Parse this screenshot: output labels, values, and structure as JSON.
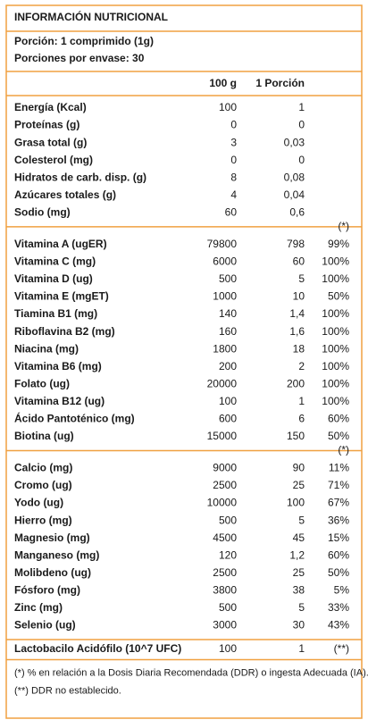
{
  "header": {
    "title": "INFORMACIÓN NUTRICIONAL",
    "serving": "Porción: 1 comprimido (1g)",
    "servings_per_container": "Porciones por envase: 30"
  },
  "columns": {
    "per_100g": "100 g",
    "per_portion": "1 Porción"
  },
  "sections": [
    {
      "rows": [
        {
          "label": "Energía (Kcal)",
          "per_100g": "100",
          "per_portion": "1"
        },
        {
          "label": "Proteínas (g)",
          "per_100g": "0",
          "per_portion": "0"
        },
        {
          "label": "Grasa total (g)",
          "per_100g": "3",
          "per_portion": "0,03"
        },
        {
          "label": "Colesterol (mg)",
          "per_100g": "0",
          "per_portion": "0"
        },
        {
          "label": "Hidratos de carb. disp. (g)",
          "per_100g": "8",
          "per_portion": "0,08"
        },
        {
          "label": "Azúcares totales (g)",
          "per_100g": "4",
          "per_portion": "0,04"
        },
        {
          "label": "Sodio (mg)",
          "per_100g": "60",
          "per_portion": "0,6"
        }
      ]
    },
    {
      "marker": "(*)",
      "rows": [
        {
          "label": "Vitamina A (ugER)",
          "per_100g": "79800",
          "per_portion": "798",
          "ddr": "99%"
        },
        {
          "label": "Vitamina C (mg)",
          "per_100g": "6000",
          "per_portion": "60",
          "ddr": "100%"
        },
        {
          "label": "Vitamina D (ug)",
          "per_100g": "500",
          "per_portion": "5",
          "ddr": "100%"
        },
        {
          "label": "Vitamina E (mgET)",
          "per_100g": "1000",
          "per_portion": "10",
          "ddr": "50%"
        },
        {
          "label": "Tiamina B1 (mg)",
          "per_100g": "140",
          "per_portion": "1,4",
          "ddr": "100%"
        },
        {
          "label": "Riboflavina B2 (mg)",
          "per_100g": "160",
          "per_portion": "1,6",
          "ddr": "100%"
        },
        {
          "label": "Niacina (mg)",
          "per_100g": "1800",
          "per_portion": "18",
          "ddr": "100%"
        },
        {
          "label": "Vitamina B6 (mg)",
          "per_100g": "200",
          "per_portion": "2",
          "ddr": "100%"
        },
        {
          "label": "Folato (ug)",
          "per_100g": "20000",
          "per_portion": "200",
          "ddr": "100%"
        },
        {
          "label": "Vitamina B12 (ug)",
          "per_100g": "100",
          "per_portion": "1",
          "ddr": "100%"
        },
        {
          "label": "Ácido Pantoténico (mg)",
          "per_100g": "600",
          "per_portion": "6",
          "ddr": "60%"
        },
        {
          "label": "Biotina (ug)",
          "per_100g": "15000",
          "per_portion": "150",
          "ddr": "50%"
        }
      ]
    },
    {
      "marker": "(*)",
      "rows": [
        {
          "label": "Calcio (mg)",
          "per_100g": "9000",
          "per_portion": "90",
          "ddr": "11%"
        },
        {
          "label": "Cromo (ug)",
          "per_100g": "2500",
          "per_portion": "25",
          "ddr": "71%"
        },
        {
          "label": "Yodo (ug)",
          "per_100g": "10000",
          "per_portion": "100",
          "ddr": "67%"
        },
        {
          "label": "Hierro (mg)",
          "per_100g": "500",
          "per_portion": "5",
          "ddr": "36%"
        },
        {
          "label": "Magnesio (mg)",
          "per_100g": "4500",
          "per_portion": "45",
          "ddr": "15%"
        },
        {
          "label": "Manganeso (mg)",
          "per_100g": "120",
          "per_portion": "1,2",
          "ddr": "60%"
        },
        {
          "label": "Molibdeno (ug)",
          "per_100g": "2500",
          "per_portion": "25",
          "ddr": "50%"
        },
        {
          "label": "Fósforo (mg)",
          "per_100g": "3800",
          "per_portion": "38",
          "ddr": "5%"
        },
        {
          "label": "Zinc (mg)",
          "per_100g": "500",
          "per_portion": "5",
          "ddr": "33%"
        },
        {
          "label": "Selenio (ug)",
          "per_100g": "3000",
          "per_portion": "30",
          "ddr": "43%"
        }
      ]
    },
    {
      "rows": [
        {
          "label": "Lactobacilo Acidófilo (10^7 UFC)",
          "per_100g": "100",
          "per_portion": "1",
          "ddr": "(**)"
        }
      ]
    }
  ],
  "footnotes": [
    "(*) % en relación a la Dosis Diaria Recomendada (DDR) o ingesta Adecuada (IA).",
    "(**) DDR  no establecido."
  ]
}
